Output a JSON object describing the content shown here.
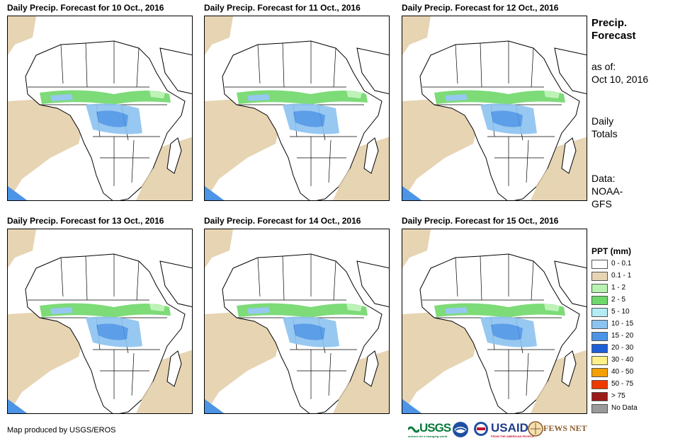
{
  "panels": [
    {
      "title": "Daily Precip. Forecast for 10 Oct., 2016"
    },
    {
      "title": "Daily Precip. Forecast for 11 Oct., 2016"
    },
    {
      "title": "Daily Precip. Forecast for 12 Oct., 2016"
    },
    {
      "title": "Daily Precip. Forecast for 13 Oct., 2016"
    },
    {
      "title": "Daily Precip. Forecast for 14 Oct., 2016"
    },
    {
      "title": "Daily Precip. Forecast for 15 Oct., 2016"
    }
  ],
  "side": {
    "heading_line1": "Precip.",
    "heading_line2": "Forecast",
    "as_of_label": "as of:",
    "as_of_date": "Oct 10, 2016",
    "totals_line1": "Daily",
    "totals_line2": "Totals",
    "data_line1": "Data:",
    "data_line2": "NOAA-",
    "data_line3": "GFS"
  },
  "legend": {
    "title": "PPT (mm)",
    "items": [
      {
        "label": "0 - 0.1",
        "color": "#ffffff"
      },
      {
        "label": "0.1 - 1",
        "color": "#e6d4b3"
      },
      {
        "label": "1 - 2",
        "color": "#b8f2b0"
      },
      {
        "label": "2 - 5",
        "color": "#6fd86a"
      },
      {
        "label": "5 - 10",
        "color": "#b3ecf5"
      },
      {
        "label": "10 - 15",
        "color": "#8cc3f0"
      },
      {
        "label": "15 - 20",
        "color": "#4c94e6"
      },
      {
        "label": "20 - 30",
        "color": "#1f5fd6"
      },
      {
        "label": "30 - 40",
        "color": "#fff08a"
      },
      {
        "label": "40 - 50",
        "color": "#f5a000"
      },
      {
        "label": "50 - 75",
        "color": "#ee3a00"
      },
      {
        "label": "> 75",
        "color": "#9b1a1a"
      },
      {
        "label": "No Data",
        "color": "#9a9a9a"
      }
    ]
  },
  "footer": {
    "credit": "Map produced by USGS/EROS"
  },
  "logos": {
    "usgs": "USGS",
    "usgs_tagline": "science for a changing world",
    "usaid": "USAID",
    "usaid_tagline": "FROM THE AMERICAN PEOPLE",
    "fews": "FEWS NET"
  }
}
